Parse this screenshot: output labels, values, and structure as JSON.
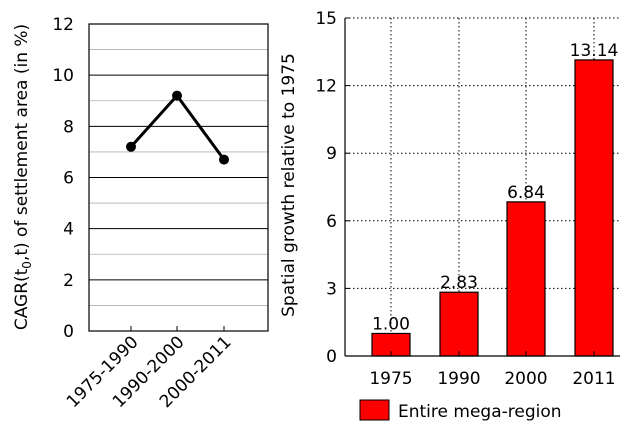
{
  "chart_data": [
    {
      "type": "line",
      "ylabel": "CAGR(t0,t) of settlement area (in %)",
      "categories": [
        "1975-1990",
        "1990-2000",
        "2000-2011"
      ],
      "values": [
        7.2,
        9.2,
        6.7
      ],
      "ylim": [
        0,
        12
      ],
      "yticks": [
        0,
        2,
        4,
        6,
        8,
        10,
        12
      ],
      "grid": "horizontal-minor",
      "color": "#000000"
    },
    {
      "type": "bar",
      "ylabel": "Spatial growth relative to 1975",
      "categories": [
        "1975",
        "1990",
        "2000",
        "2011"
      ],
      "series": [
        {
          "name": "Entire mega-region",
          "values": [
            1.0,
            2.83,
            6.84,
            13.14
          ],
          "value_labels": [
            "1.00",
            "2.83",
            "6.84",
            "13.14"
          ],
          "color": "#ff0000"
        }
      ],
      "ylim": [
        0,
        15
      ],
      "yticks": [
        0,
        3,
        6,
        9,
        12,
        15
      ],
      "grid": "dotted",
      "legend": "bottom"
    }
  ]
}
